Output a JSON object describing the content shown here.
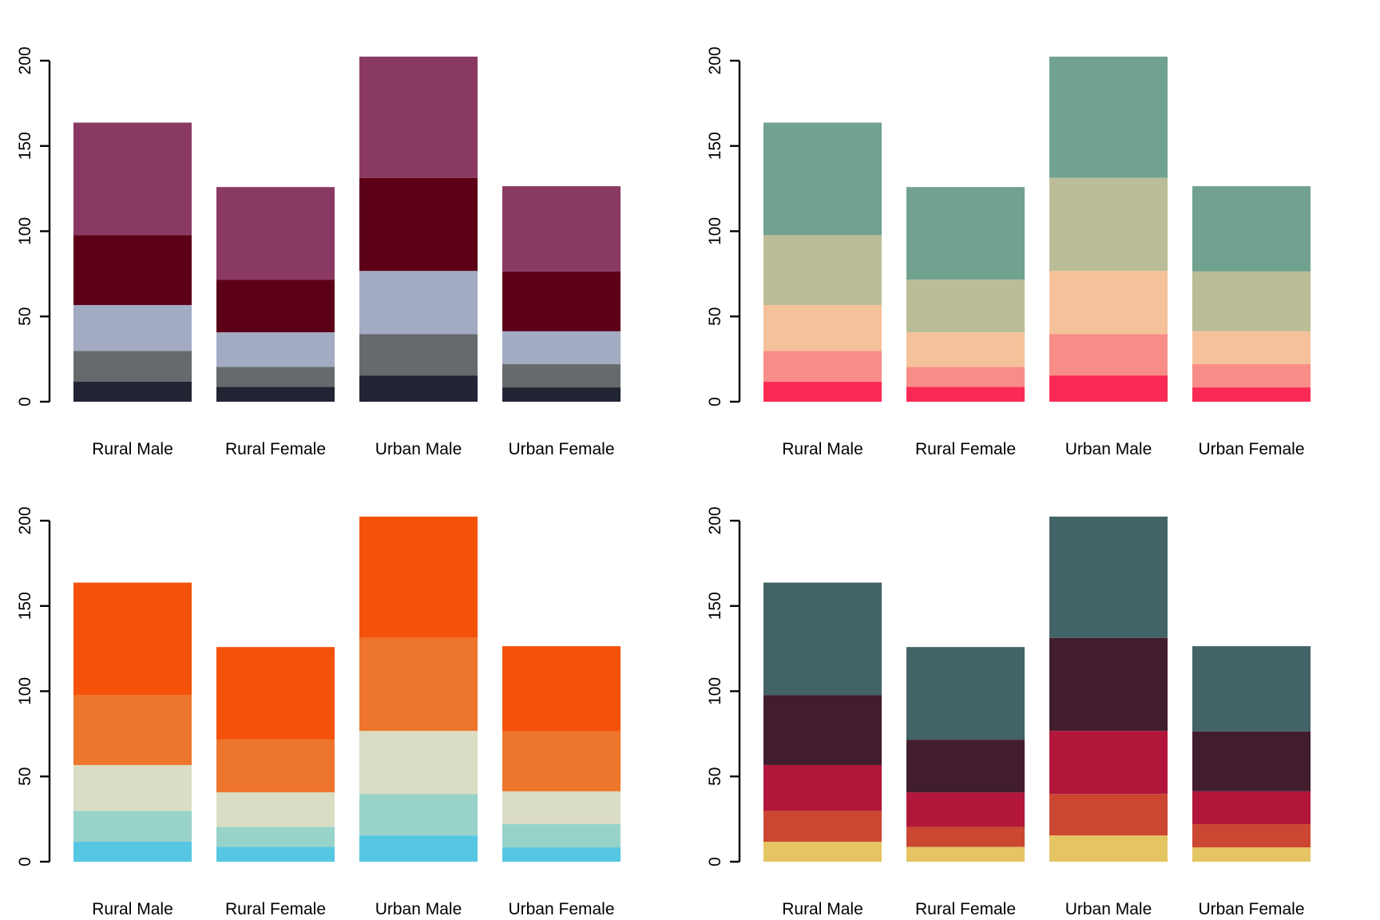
{
  "figure": {
    "background": "#ffffff",
    "panels": [
      "top-left",
      "top-right",
      "bottom-left",
      "bottom-right"
    ],
    "axis_color": "#000000",
    "text_color": "#000000"
  },
  "chart_data": [
    {
      "type": "bar",
      "stacked": true,
      "panel": "top-left",
      "title": "",
      "xlabel": "",
      "ylabel": "",
      "categories": [
        "Rural Male",
        "Rural Female",
        "Urban Male",
        "Urban Female"
      ],
      "series": [
        {
          "name": "segment-1",
          "color": "#212433",
          "values": [
            11.7,
            8.7,
            15.4,
            8.4
          ]
        },
        {
          "name": "segment-2",
          "color": "#666A6D",
          "values": [
            18.1,
            11.7,
            24.3,
            13.6
          ]
        },
        {
          "name": "segment-3",
          "color": "#A3ABC3",
          "values": [
            26.9,
            20.3,
            37.0,
            19.3
          ]
        },
        {
          "name": "segment-4",
          "color": "#5C0017",
          "values": [
            41.0,
            30.9,
            54.6,
            35.1
          ]
        },
        {
          "name": "segment-5",
          "color": "#8A3A62",
          "values": [
            66.0,
            54.3,
            71.1,
            50.0
          ]
        }
      ],
      "totals": [
        163.7,
        125.9,
        202.4,
        126.4
      ],
      "ylim": [
        0,
        200
      ],
      "yticks": [
        0,
        50,
        100,
        150,
        200
      ],
      "grid": false,
      "legend": "none"
    },
    {
      "type": "bar",
      "stacked": true,
      "panel": "top-right",
      "title": "",
      "xlabel": "",
      "ylabel": "",
      "categories": [
        "Rural Male",
        "Rural Female",
        "Urban Male",
        "Urban Female"
      ],
      "series": [
        {
          "name": "segment-1",
          "color": "#FB2A55",
          "values": [
            11.7,
            8.7,
            15.4,
            8.4
          ]
        },
        {
          "name": "segment-2",
          "color": "#F88C87",
          "values": [
            18.1,
            11.7,
            24.3,
            13.6
          ]
        },
        {
          "name": "segment-3",
          "color": "#F5C19A",
          "values": [
            26.9,
            20.3,
            37.0,
            19.3
          ]
        },
        {
          "name": "segment-4",
          "color": "#BABD97",
          "values": [
            41.0,
            30.9,
            54.6,
            35.1
          ]
        },
        {
          "name": "segment-5",
          "color": "#71A28F",
          "values": [
            66.0,
            54.3,
            71.1,
            50.0
          ]
        }
      ],
      "totals": [
        163.7,
        125.9,
        202.4,
        126.4
      ],
      "ylim": [
        0,
        200
      ],
      "yticks": [
        0,
        50,
        100,
        150,
        200
      ],
      "grid": false,
      "legend": "none"
    },
    {
      "type": "bar",
      "stacked": true,
      "panel": "bottom-left",
      "title": "",
      "xlabel": "",
      "ylabel": "",
      "categories": [
        "Rural Male",
        "Rural Female",
        "Urban Male",
        "Urban Female"
      ],
      "series": [
        {
          "name": "segment-1",
          "color": "#55C7E2",
          "values": [
            11.7,
            8.7,
            15.4,
            8.4
          ]
        },
        {
          "name": "segment-2",
          "color": "#98D3CA",
          "values": [
            18.1,
            11.7,
            24.3,
            13.6
          ]
        },
        {
          "name": "segment-3",
          "color": "#DADDC3",
          "values": [
            26.9,
            20.3,
            37.0,
            19.3
          ]
        },
        {
          "name": "segment-4",
          "color": "#ED752C",
          "values": [
            41.0,
            30.9,
            54.6,
            35.1
          ]
        },
        {
          "name": "segment-5",
          "color": "#F4520A",
          "values": [
            66.0,
            54.3,
            71.1,
            50.0
          ]
        }
      ],
      "totals": [
        163.7,
        125.9,
        202.4,
        126.4
      ],
      "ylim": [
        0,
        200
      ],
      "yticks": [
        0,
        50,
        100,
        150,
        200
      ],
      "grid": false,
      "legend": "none"
    },
    {
      "type": "bar",
      "stacked": true,
      "panel": "bottom-right",
      "title": "",
      "xlabel": "",
      "ylabel": "",
      "categories": [
        "Rural Male",
        "Rural Female",
        "Urban Male",
        "Urban Female"
      ],
      "series": [
        {
          "name": "segment-1",
          "color": "#E5C463",
          "values": [
            11.7,
            8.7,
            15.4,
            8.4
          ]
        },
        {
          "name": "segment-2",
          "color": "#CB4732",
          "values": [
            18.1,
            11.7,
            24.3,
            13.6
          ]
        },
        {
          "name": "segment-3",
          "color": "#B2173B",
          "values": [
            26.9,
            20.3,
            37.0,
            19.3
          ]
        },
        {
          "name": "segment-4",
          "color": "#421D2D",
          "values": [
            41.0,
            30.9,
            54.6,
            35.1
          ]
        },
        {
          "name": "segment-5",
          "color": "#426467",
          "values": [
            66.0,
            54.3,
            71.1,
            50.0
          ]
        }
      ],
      "totals": [
        163.7,
        125.9,
        202.4,
        126.4
      ],
      "ylim": [
        0,
        200
      ],
      "yticks": [
        0,
        50,
        100,
        150,
        200
      ],
      "grid": false,
      "legend": "none"
    }
  ]
}
